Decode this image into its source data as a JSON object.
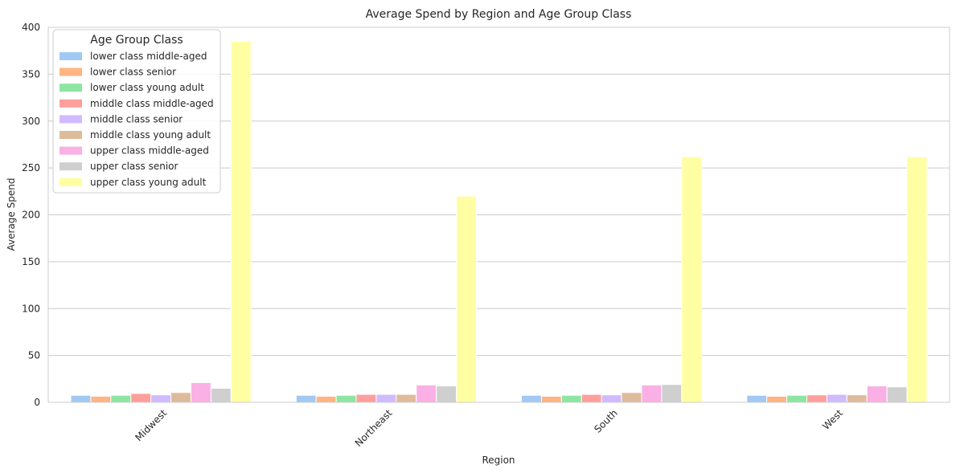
{
  "chart_data": {
    "type": "bar",
    "title": "Average Spend by Region and Age Group Class",
    "xlabel": "Region",
    "ylabel": "Average Spend",
    "ylim": [
      0,
      400
    ],
    "yticks": [
      0,
      50,
      100,
      150,
      200,
      250,
      300,
      350,
      400
    ],
    "grid": true,
    "legend_title": "Age Group Class",
    "legend_position": "top-left",
    "categories": [
      "Midwest",
      "Northeast",
      "South",
      "West"
    ],
    "series": [
      {
        "name": "lower class middle-aged",
        "color": "#a1c9f4",
        "values": [
          7.5,
          7.5,
          7.5,
          7.5
        ]
      },
      {
        "name": "lower class senior",
        "color": "#ffb482",
        "values": [
          6.5,
          6.5,
          6.5,
          6.5
        ]
      },
      {
        "name": "lower class young adult",
        "color": "#8de5a1",
        "values": [
          7.5,
          7.5,
          7.5,
          7.5
        ]
      },
      {
        "name": "middle class middle-aged",
        "color": "#ff9f9b",
        "values": [
          9.5,
          8.5,
          8.5,
          8.0
        ]
      },
      {
        "name": "middle class senior",
        "color": "#d0bbff",
        "values": [
          8.0,
          8.5,
          8.0,
          8.5
        ]
      },
      {
        "name": "middle class young adult",
        "color": "#debb9b",
        "values": [
          10.5,
          8.5,
          10.5,
          8.0
        ]
      },
      {
        "name": "upper class middle-aged",
        "color": "#fab0e4",
        "values": [
          21.0,
          18.5,
          18.5,
          17.5
        ]
      },
      {
        "name": "upper class senior",
        "color": "#cfcfcf",
        "values": [
          15.0,
          17.5,
          19.0,
          16.5
        ]
      },
      {
        "name": "upper class young adult",
        "color": "#fffea3",
        "values": [
          385.0,
          220.0,
          262.0,
          262.0
        ]
      }
    ]
  }
}
